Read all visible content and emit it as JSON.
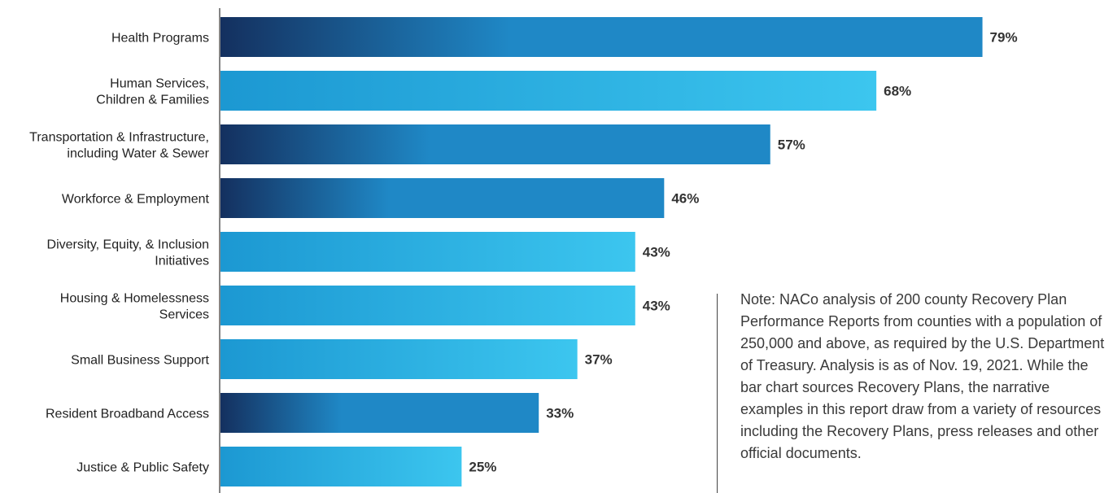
{
  "colors": {
    "bar_dark_start": "#14305f",
    "bar_mid": "#1f88c6",
    "bar_light_start": "#1c98d2",
    "bar_light_end": "#3cc6ef",
    "axis": "#333333"
  },
  "chart_data": {
    "type": "bar",
    "orientation": "horizontal",
    "categories": [
      [
        "Health Programs"
      ],
      [
        "Human Services,",
        "Children & Families"
      ],
      [
        "Transportation & Infrastructure,",
        "including Water & Sewer"
      ],
      [
        "Workforce & Employment"
      ],
      [
        "Diversity, Equity, & Inclusion",
        "Initiatives"
      ],
      [
        "Housing & Homelessness",
        "Services"
      ],
      [
        "Small Business Support"
      ],
      [
        "Resident Broadband Access"
      ],
      [
        "Justice & Public Safety"
      ]
    ],
    "values": [
      79,
      68,
      57,
      46,
      43,
      43,
      37,
      33,
      25
    ],
    "value_labels": [
      "79%",
      "68%",
      "57%",
      "46%",
      "43%",
      "43%",
      "37%",
      "33%",
      "25%"
    ],
    "bar_styles": [
      "dark",
      "light",
      "dark",
      "dark",
      "light",
      "light",
      "light",
      "dark",
      "light"
    ],
    "xlim": [
      0,
      100
    ],
    "grid": false,
    "legend": "none"
  },
  "note": {
    "text": "Note: NACo analysis of 200 county Recovery Plan Performance Reports from counties with a population of 250,000 and above, as required by the U.S. Department of Treasury. Analysis is as of Nov. 19, 2021. While the bar chart sources Recovery Plans, the narrative examples in this report draw from a variety of resources including the Recovery Plans, press releases and other official documents."
  }
}
